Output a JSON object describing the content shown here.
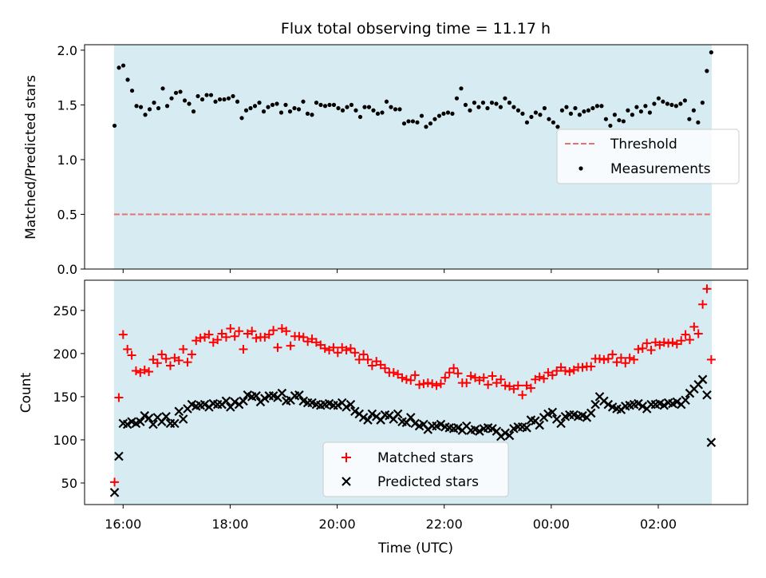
{
  "colors": {
    "shade": "#add8e6",
    "threshold": "#e8716f",
    "matched": "#ff0000",
    "predicted": "#000000",
    "measurement": "#000000"
  },
  "x_ticks": [
    "16:00",
    "18:00",
    "20:00",
    "22:00",
    "00:00",
    "02:00"
  ],
  "chart_data": [
    {
      "type": "scatter",
      "title": "Flux total observing time = 11.17 h",
      "xlabel": "",
      "ylabel": "Matched/Predicted stars",
      "x_unit": "hours since 16:00 UTC",
      "xlim": [
        -0.72,
        11.67
      ],
      "ylim": [
        0.0,
        2.05
      ],
      "y_ticks": [
        "0.0",
        "0.5",
        "1.0",
        "1.5",
        "2.0"
      ],
      "shaded_span": [
        -0.17,
        11.0
      ],
      "threshold": {
        "name": "Threshold",
        "value": 0.5
      },
      "legend": {
        "position": "center-right",
        "entries": [
          "Threshold",
          "Measurements"
        ]
      },
      "series": [
        {
          "name": "Measurements",
          "values": [
            1.31,
            1.84,
            1.86,
            1.73,
            1.63,
            1.49,
            1.48,
            1.41,
            1.46,
            1.52,
            1.47,
            1.65,
            1.49,
            1.56,
            1.61,
            1.62,
            1.54,
            1.51,
            1.44,
            1.58,
            1.55,
            1.59,
            1.59,
            1.53,
            1.55,
            1.55,
            1.56,
            1.58,
            1.53,
            1.38,
            1.45,
            1.47,
            1.49,
            1.52,
            1.44,
            1.48,
            1.5,
            1.51,
            1.43,
            1.5,
            1.44,
            1.47,
            1.46,
            1.53,
            1.42,
            1.41,
            1.52,
            1.5,
            1.49,
            1.5,
            1.5,
            1.47,
            1.45,
            1.48,
            1.5,
            1.45,
            1.39,
            1.48,
            1.48,
            1.45,
            1.42,
            1.43,
            1.53,
            1.48,
            1.46,
            1.46,
            1.33,
            1.35,
            1.35,
            1.34,
            1.4,
            1.3,
            1.33,
            1.37,
            1.4,
            1.42,
            1.43,
            1.42,
            1.56,
            1.65,
            1.5,
            1.45,
            1.52,
            1.48,
            1.52,
            1.47,
            1.52,
            1.51,
            1.48,
            1.56,
            1.52,
            1.48,
            1.45,
            1.42,
            1.34,
            1.39,
            1.43,
            1.41,
            1.47,
            1.37,
            1.34,
            1.3,
            1.45,
            1.48,
            1.42,
            1.47,
            1.41,
            1.44,
            1.45,
            1.47,
            1.49,
            1.49,
            1.37,
            1.31,
            1.41,
            1.36,
            1.35,
            1.45,
            1.41,
            1.48,
            1.44,
            1.49,
            1.43,
            1.51,
            1.56,
            1.53,
            1.51,
            1.5,
            1.49,
            1.51,
            1.54,
            1.37,
            1.45,
            1.34,
            1.52,
            1.81,
            1.98
          ]
        }
      ]
    },
    {
      "type": "scatter",
      "title": "",
      "xlabel": "Time (UTC)",
      "ylabel": "Count",
      "x_unit": "hours since 16:00 UTC",
      "xlim": [
        -0.72,
        11.67
      ],
      "ylim": [
        25,
        285
      ],
      "y_ticks": [
        "50",
        "100",
        "150",
        "200",
        "250"
      ],
      "shaded_span": [
        -0.17,
        11.0
      ],
      "legend": {
        "position": "lower-center",
        "entries": [
          "Matched stars",
          "Predicted stars"
        ]
      },
      "series": [
        {
          "name": "Matched stars",
          "values": [
            51,
            149,
            222,
            205,
            198,
            180,
            178,
            181,
            179,
            193,
            189,
            199,
            194,
            186,
            195,
            192,
            205,
            190,
            199,
            215,
            218,
            219,
            222,
            213,
            216,
            223,
            219,
            229,
            220,
            226,
            205,
            223,
            226,
            218,
            219,
            219,
            222,
            227,
            207,
            229,
            226,
            209,
            220,
            220,
            219,
            214,
            217,
            213,
            210,
            206,
            204,
            207,
            201,
            207,
            204,
            206,
            201,
            193,
            199,
            193,
            186,
            191,
            187,
            183,
            178,
            178,
            176,
            172,
            170,
            169,
            175,
            164,
            165,
            166,
            165,
            163,
            165,
            172,
            178,
            183,
            177,
            166,
            166,
            174,
            172,
            169,
            172,
            164,
            174,
            166,
            170,
            163,
            162,
            159,
            163,
            152,
            163,
            160,
            170,
            173,
            171,
            178,
            175,
            180,
            184,
            180,
            179,
            181,
            184,
            184,
            185,
            185,
            194,
            194,
            193,
            194,
            199,
            190,
            195,
            189,
            195,
            193,
            205,
            206,
            212,
            204,
            213,
            210,
            213,
            212,
            213,
            211,
            215,
            222,
            216,
            231,
            223,
            257,
            275,
            193
          ]
        },
        {
          "name": "Predicted stars",
          "values": [
            39,
            81,
            119,
            118,
            121,
            119,
            121,
            128,
            125,
            118,
            126,
            121,
            127,
            119,
            119,
            133,
            124,
            136,
            141,
            139,
            140,
            141,
            138,
            142,
            141,
            141,
            145,
            138,
            144,
            141,
            145,
            152,
            150,
            151,
            144,
            148,
            151,
            151,
            149,
            154,
            145,
            146,
            151,
            152,
            145,
            143,
            143,
            141,
            140,
            141,
            142,
            140,
            140,
            143,
            138,
            141,
            133,
            130,
            126,
            123,
            130,
            127,
            123,
            129,
            128,
            124,
            130,
            121,
            120,
            126,
            119,
            116,
            118,
            112,
            116,
            116,
            118,
            115,
            114,
            113,
            114,
            111,
            116,
            111,
            112,
            110,
            113,
            114,
            113,
            110,
            104,
            108,
            105,
            113,
            115,
            115,
            114,
            123,
            122,
            117,
            126,
            130,
            132,
            124,
            119,
            127,
            129,
            129,
            127,
            128,
            126,
            131,
            141,
            150,
            145,
            141,
            138,
            136,
            135,
            139,
            140,
            141,
            142,
            139,
            136,
            141,
            141,
            142,
            140,
            143,
            142,
            144,
            141,
            146,
            154,
            159,
            164,
            170,
            152,
            97
          ]
        }
      ]
    }
  ]
}
